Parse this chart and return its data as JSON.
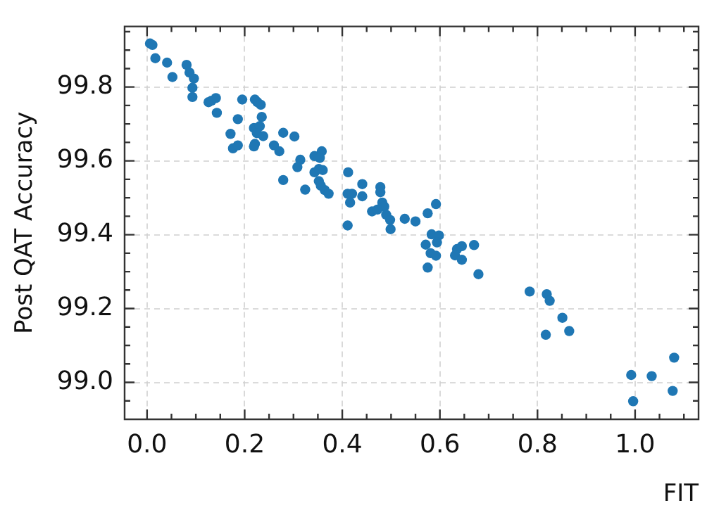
{
  "chart_data": {
    "type": "scatter",
    "xlabel": "FIT",
    "ylabel": "Post QAT Accuracy",
    "xlim": [
      -0.046,
      1.13
    ],
    "ylim": [
      98.9,
      99.964
    ],
    "xticks": [
      {
        "value": 0,
        "label": "0.0"
      },
      {
        "value": 0.05,
        "label": null
      },
      {
        "value": 0.1,
        "label": null
      },
      {
        "value": 0.15,
        "label": null
      },
      {
        "value": 0.2,
        "label": "0.2"
      },
      {
        "value": 0.25,
        "label": null
      },
      {
        "value": 0.3,
        "label": null
      },
      {
        "value": 0.35,
        "label": null
      },
      {
        "value": 0.4,
        "label": "0.4"
      },
      {
        "value": 0.45,
        "label": null
      },
      {
        "value": 0.5,
        "label": null
      },
      {
        "value": 0.55,
        "label": null
      },
      {
        "value": 0.6,
        "label": "0.6"
      },
      {
        "value": 0.65,
        "label": null
      },
      {
        "value": 0.7,
        "label": null
      },
      {
        "value": 0.75,
        "label": null
      },
      {
        "value": 0.8,
        "label": "0.8"
      },
      {
        "value": 0.85,
        "label": null
      },
      {
        "value": 0.9,
        "label": null
      },
      {
        "value": 0.95,
        "label": null
      },
      {
        "value": 1.0,
        "label": "1.0"
      },
      {
        "value": 1.05,
        "label": null
      },
      {
        "value": 1.1,
        "label": null
      }
    ],
    "yticks": [
      {
        "value": 98.95,
        "label": null
      },
      {
        "value": 99.0,
        "label": "99.0"
      },
      {
        "value": 99.05,
        "label": null
      },
      {
        "value": 99.1,
        "label": null
      },
      {
        "value": 99.15,
        "label": null
      },
      {
        "value": 99.2,
        "label": "99.2"
      },
      {
        "value": 99.25,
        "label": null
      },
      {
        "value": 99.3,
        "label": null
      },
      {
        "value": 99.35,
        "label": null
      },
      {
        "value": 99.4,
        "label": "99.4"
      },
      {
        "value": 99.45,
        "label": null
      },
      {
        "value": 99.5,
        "label": null
      },
      {
        "value": 99.55,
        "label": null
      },
      {
        "value": 99.6,
        "label": "99.6"
      },
      {
        "value": 99.65,
        "label": null
      },
      {
        "value": 99.7,
        "label": null
      },
      {
        "value": 99.75,
        "label": null
      },
      {
        "value": 99.8,
        "label": "99.8"
      },
      {
        "value": 99.85,
        "label": null
      },
      {
        "value": 99.9,
        "label": null
      },
      {
        "value": 99.95,
        "label": null
      }
    ],
    "grid": true,
    "marker": "circle",
    "series": [
      {
        "color": "#1f77b4",
        "x": [
          0.006,
          0.011,
          0.017,
          0.041,
          0.052,
          0.081,
          0.087,
          0.096,
          0.093,
          0.093,
          0.126,
          0.132,
          0.141,
          0.143,
          0.186,
          0.195,
          0.171,
          0.176,
          0.186,
          0.221,
          0.226,
          0.233,
          0.235,
          0.219,
          0.231,
          0.225,
          0.238,
          0.221,
          0.219,
          0.26,
          0.271,
          0.279,
          0.302,
          0.314,
          0.308,
          0.279,
          0.324,
          0.343,
          0.358,
          0.354,
          0.343,
          0.352,
          0.36,
          0.352,
          0.356,
          0.364,
          0.372,
          0.412,
          0.411,
          0.42,
          0.416,
          0.441,
          0.441,
          0.478,
          0.478,
          0.482,
          0.486,
          0.461,
          0.472,
          0.49,
          0.498,
          0.499,
          0.411,
          0.528,
          0.55,
          0.575,
          0.592,
          0.583,
          0.598,
          0.594,
          0.571,
          0.581,
          0.592,
          0.575,
          0.635,
          0.645,
          0.67,
          0.631,
          0.645,
          0.679,
          0.784,
          0.819,
          0.825,
          0.851,
          0.817,
          0.865,
          1.08,
          0.992,
          1.034,
          1.077,
          0.996
        ],
        "values": [
          99.918,
          99.914,
          99.878,
          99.866,
          99.827,
          99.86,
          99.839,
          99.823,
          99.798,
          99.773,
          99.759,
          99.763,
          99.77,
          99.73,
          99.713,
          99.766,
          99.673,
          99.634,
          99.642,
          99.766,
          99.759,
          99.752,
          99.719,
          99.689,
          99.694,
          99.675,
          99.667,
          99.646,
          99.639,
          99.642,
          99.626,
          99.676,
          99.666,
          99.603,
          99.583,
          99.548,
          99.522,
          99.613,
          99.626,
          99.608,
          99.569,
          99.578,
          99.575,
          99.545,
          99.533,
          99.521,
          99.511,
          99.569,
          99.511,
          99.511,
          99.487,
          99.537,
          99.504,
          99.529,
          99.515,
          99.487,
          99.476,
          99.463,
          99.468,
          99.454,
          99.44,
          99.415,
          99.425,
          99.443,
          99.436,
          99.458,
          99.483,
          99.401,
          99.398,
          99.379,
          99.373,
          99.35,
          99.343,
          99.311,
          99.361,
          99.369,
          99.372,
          99.344,
          99.332,
          99.293,
          99.246,
          99.239,
          99.221,
          99.175,
          99.129,
          99.139,
          99.067,
          99.02,
          99.017,
          98.977,
          98.949
        ]
      }
    ]
  }
}
